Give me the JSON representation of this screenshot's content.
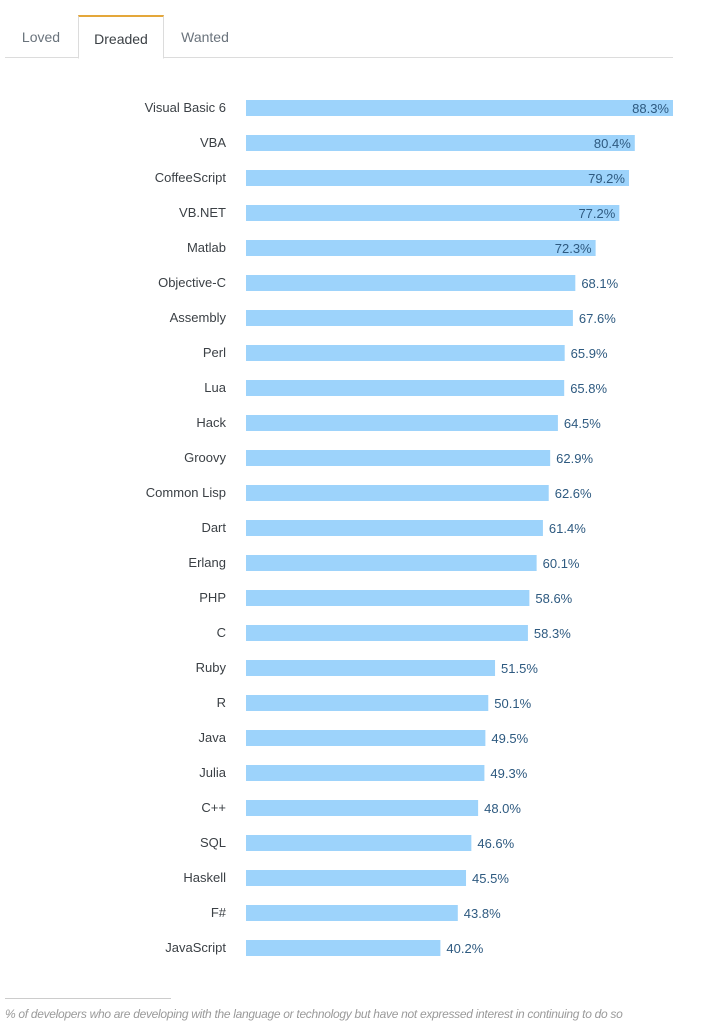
{
  "tabs": [
    {
      "label": "Loved"
    },
    {
      "label": "Dreaded",
      "active": true
    },
    {
      "label": "Wanted"
    }
  ],
  "chart_data": {
    "type": "bar",
    "orientation": "horizontal",
    "categories": [
      "Visual Basic 6",
      "VBA",
      "CoffeeScript",
      "VB.NET",
      "Matlab",
      "Objective-C",
      "Assembly",
      "Perl",
      "Lua",
      "Hack",
      "Groovy",
      "Common Lisp",
      "Dart",
      "Erlang",
      "PHP",
      "C",
      "Ruby",
      "R",
      "Java",
      "Julia",
      "C++",
      "SQL",
      "Haskell",
      "F#",
      "JavaScript"
    ],
    "values": [
      88.3,
      80.4,
      79.2,
      77.2,
      72.3,
      68.1,
      67.6,
      65.9,
      65.8,
      64.5,
      62.9,
      62.6,
      61.4,
      60.1,
      58.6,
      58.3,
      51.5,
      50.1,
      49.5,
      49.3,
      48.0,
      46.6,
      45.5,
      43.8,
      40.2
    ],
    "unit": "%",
    "bar_color": "#9dd3fb",
    "label_color": "#2e5a80"
  },
  "footnote": "% of developers who are developing with the language or technology but have not expressed interest in continuing to do so"
}
